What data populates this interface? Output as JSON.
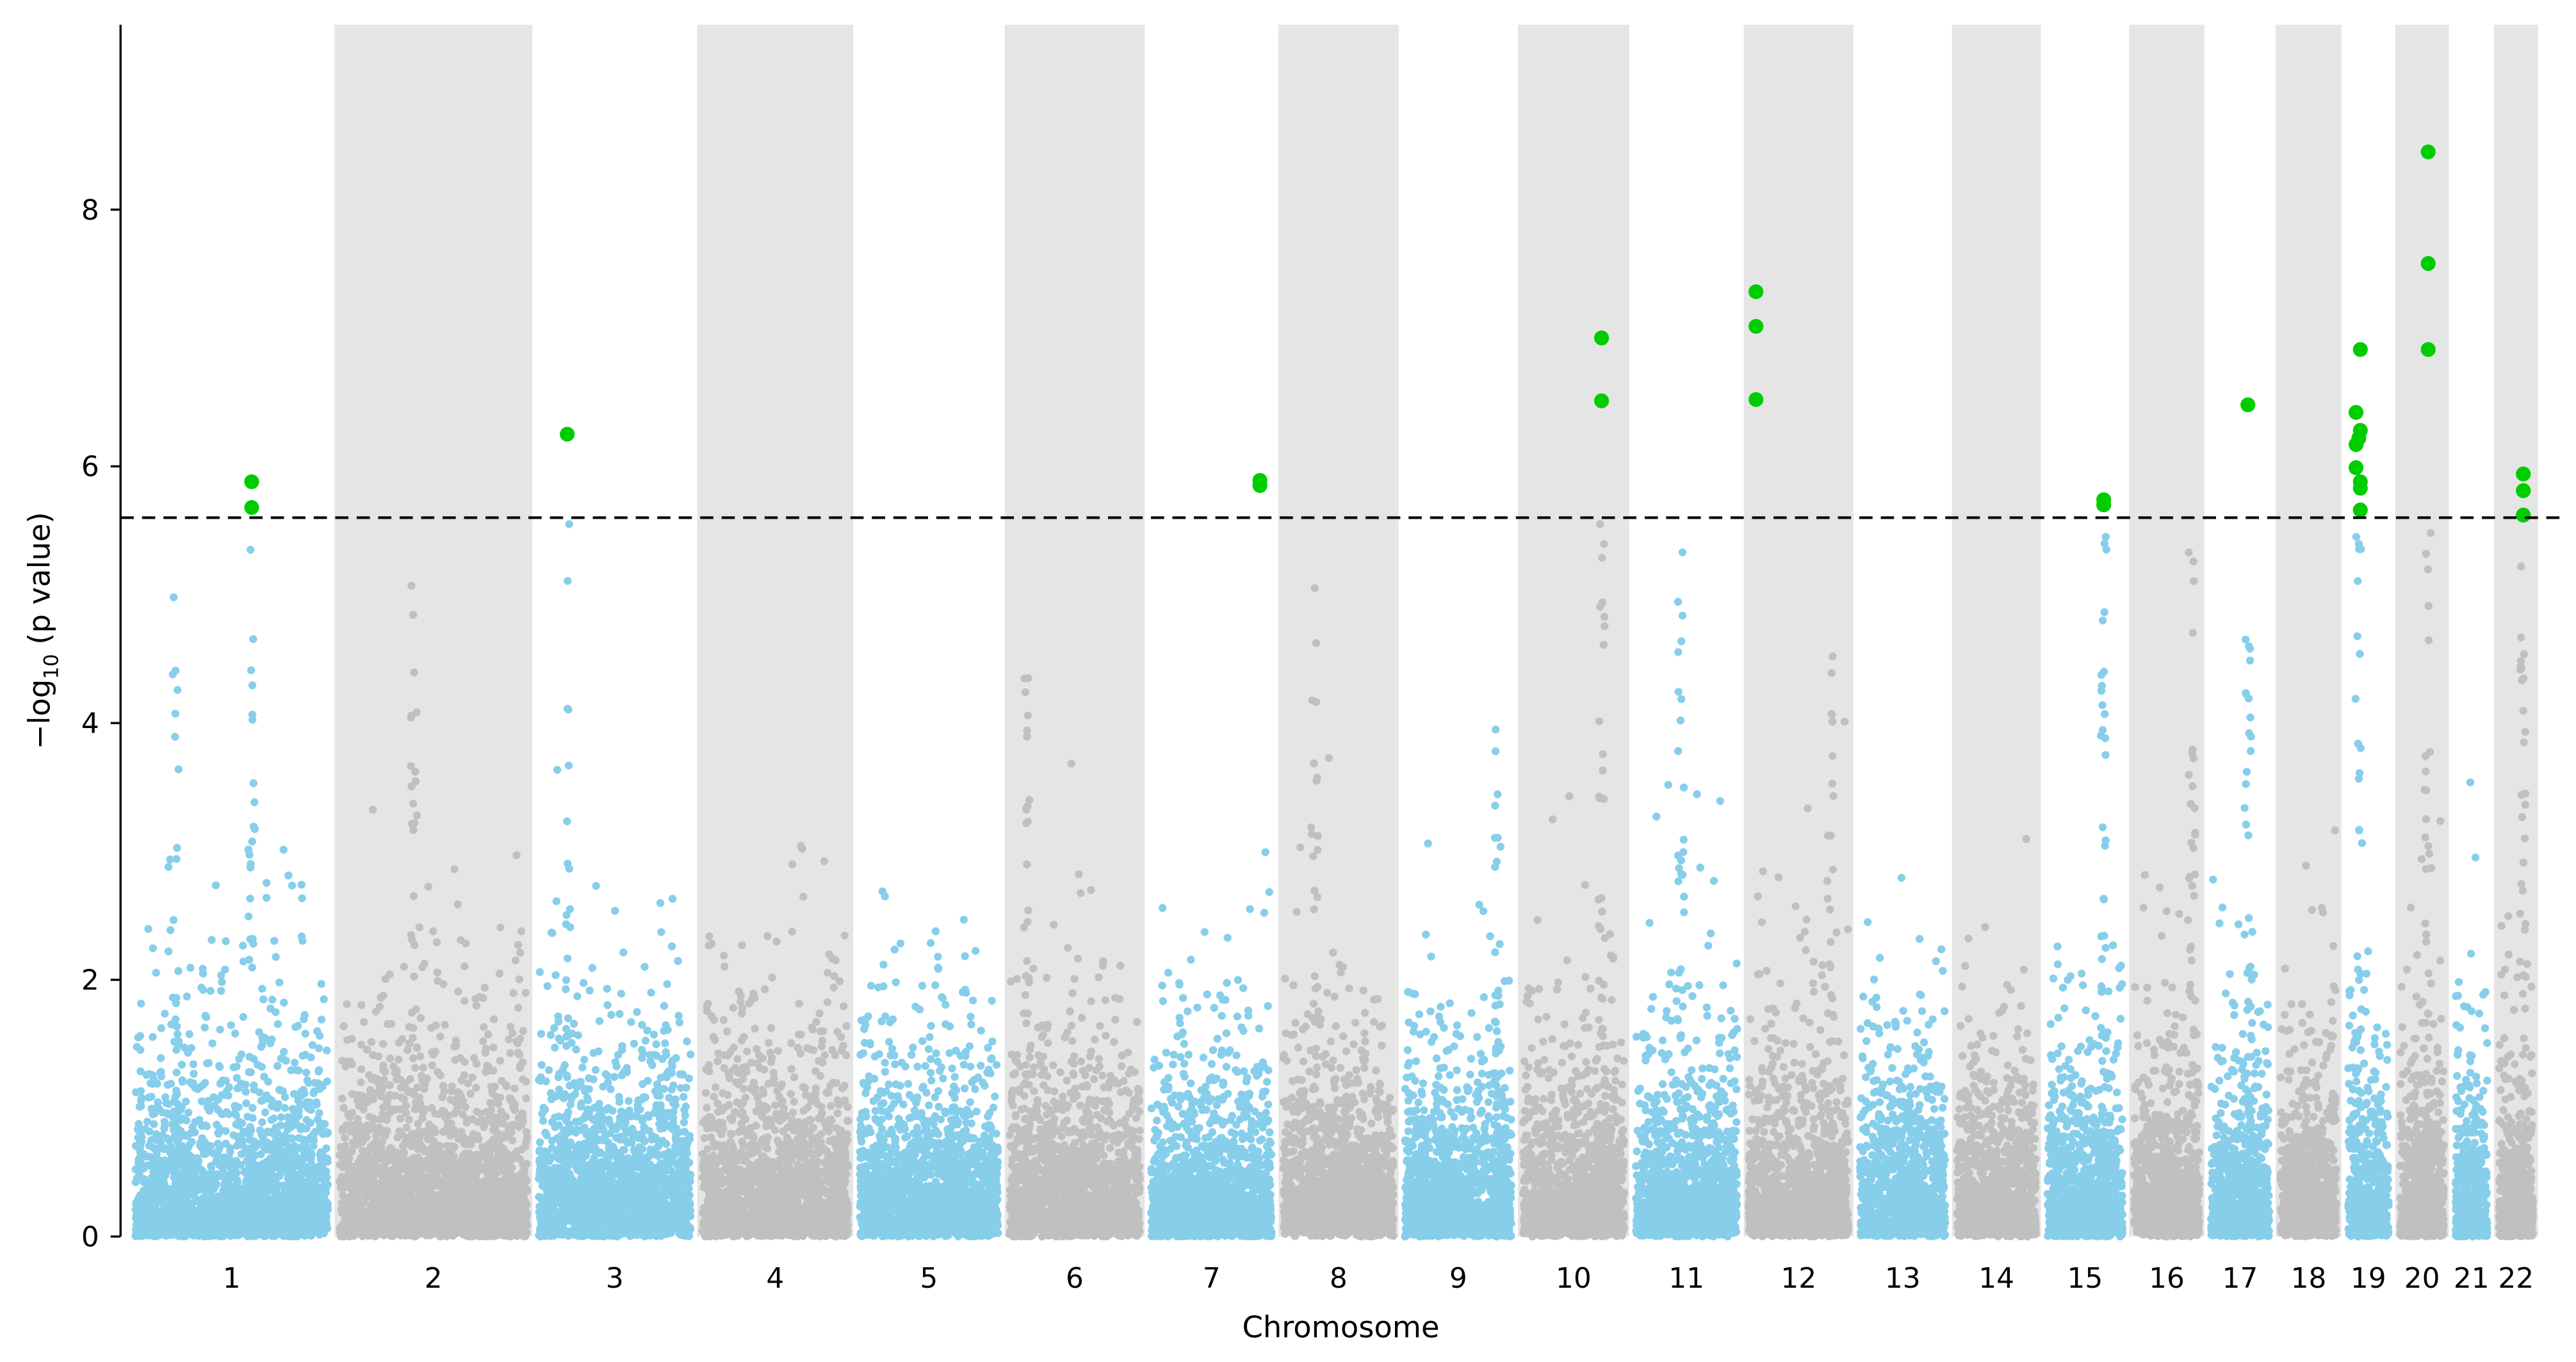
{
  "chart_data": {
    "type": "scatter",
    "subtype": "manhattan",
    "title": "",
    "xlabel": "Chromosome",
    "ylabel_prefix": "−log",
    "ylabel_sub": "10",
    "ylabel_suffix": " (p value)",
    "ylim": [
      0,
      9.44
    ],
    "yticks": [
      0,
      2,
      4,
      6,
      8
    ],
    "threshold": 5.6,
    "colors": {
      "odd": "#87ceeb",
      "even": "#c0c0c0",
      "significant": "#00cc00",
      "band": "#e5e5e5",
      "threshold": "#000000"
    },
    "chromosomes": [
      {
        "label": "1",
        "length": 249
      },
      {
        "label": "2",
        "length": 243
      },
      {
        "label": "3",
        "length": 198
      },
      {
        "label": "4",
        "length": 191
      },
      {
        "label": "5",
        "length": 181
      },
      {
        "label": "6",
        "length": 171
      },
      {
        "label": "7",
        "length": 159
      },
      {
        "label": "8",
        "length": 146
      },
      {
        "label": "9",
        "length": 141
      },
      {
        "label": "10",
        "length": 135
      },
      {
        "label": "11",
        "length": 135
      },
      {
        "label": "12",
        "length": 133
      },
      {
        "label": "13",
        "length": 115
      },
      {
        "label": "14",
        "length": 107
      },
      {
        "label": "15",
        "length": 102
      },
      {
        "label": "16",
        "length": 90
      },
      {
        "label": "17",
        "length": 81
      },
      {
        "label": "18",
        "length": 78
      },
      {
        "label": "19",
        "length": 59
      },
      {
        "label": "20",
        "length": 63
      },
      {
        "label": "21",
        "length": 48
      },
      {
        "label": "22",
        "length": 51
      }
    ],
    "significant_hits": [
      {
        "chrom": "1",
        "pos": 0.6,
        "y": 5.88
      },
      {
        "chrom": "1",
        "pos": 0.6,
        "y": 5.68
      },
      {
        "chrom": "3",
        "pos": 0.2,
        "y": 6.25
      },
      {
        "chrom": "7",
        "pos": 0.88,
        "y": 5.89
      },
      {
        "chrom": "7",
        "pos": 0.88,
        "y": 5.85
      },
      {
        "chrom": "10",
        "pos": 0.76,
        "y": 7.0
      },
      {
        "chrom": "10",
        "pos": 0.76,
        "y": 6.51
      },
      {
        "chrom": "12",
        "pos": 0.1,
        "y": 7.36
      },
      {
        "chrom": "12",
        "pos": 0.1,
        "y": 7.09
      },
      {
        "chrom": "12",
        "pos": 0.1,
        "y": 6.52
      },
      {
        "chrom": "15",
        "pos": 0.73,
        "y": 5.74
      },
      {
        "chrom": "15",
        "pos": 0.73,
        "y": 5.7
      },
      {
        "chrom": "17",
        "pos": 0.62,
        "y": 6.48
      },
      {
        "chrom": "19",
        "pos": 0.33,
        "y": 6.91
      },
      {
        "chrom": "19",
        "pos": 0.24,
        "y": 6.42
      },
      {
        "chrom": "19",
        "pos": 0.33,
        "y": 6.28
      },
      {
        "chrom": "19",
        "pos": 0.3,
        "y": 6.22
      },
      {
        "chrom": "19",
        "pos": 0.24,
        "y": 6.17
      },
      {
        "chrom": "19",
        "pos": 0.24,
        "y": 5.99
      },
      {
        "chrom": "19",
        "pos": 0.33,
        "y": 5.88
      },
      {
        "chrom": "19",
        "pos": 0.33,
        "y": 5.83
      },
      {
        "chrom": "19",
        "pos": 0.33,
        "y": 5.66
      },
      {
        "chrom": "20",
        "pos": 0.62,
        "y": 8.45
      },
      {
        "chrom": "20",
        "pos": 0.62,
        "y": 7.58
      },
      {
        "chrom": "20",
        "pos": 0.62,
        "y": 6.91
      },
      {
        "chrom": "22",
        "pos": 0.68,
        "y": 5.94
      },
      {
        "chrom": "22",
        "pos": 0.68,
        "y": 5.81
      },
      {
        "chrom": "22",
        "pos": 0.68,
        "y": 5.62
      }
    ],
    "peaks": [
      {
        "chrom": "1",
        "pos": 0.6,
        "max": 5.35
      },
      {
        "chrom": "1",
        "pos": 0.22,
        "max": 4.98
      },
      {
        "chrom": "2",
        "pos": 0.4,
        "max": 5.07
      },
      {
        "chrom": "3",
        "pos": 0.2,
        "max": 5.55
      },
      {
        "chrom": "6",
        "pos": 0.15,
        "max": 4.35
      },
      {
        "chrom": "8",
        "pos": 0.3,
        "max": 5.05
      },
      {
        "chrom": "9",
        "pos": 0.85,
        "max": 3.95
      },
      {
        "chrom": "10",
        "pos": 0.76,
        "max": 5.55
      },
      {
        "chrom": "11",
        "pos": 0.45,
        "max": 5.33
      },
      {
        "chrom": "12",
        "pos": 0.8,
        "max": 4.52
      },
      {
        "chrom": "15",
        "pos": 0.73,
        "max": 5.45
      },
      {
        "chrom": "16",
        "pos": 0.85,
        "max": 5.33
      },
      {
        "chrom": "17",
        "pos": 0.62,
        "max": 4.65
      },
      {
        "chrom": "19",
        "pos": 0.3,
        "max": 5.45
      },
      {
        "chrom": "20",
        "pos": 0.62,
        "max": 5.48
      },
      {
        "chrom": "22",
        "pos": 0.68,
        "max": 5.22
      }
    ]
  }
}
